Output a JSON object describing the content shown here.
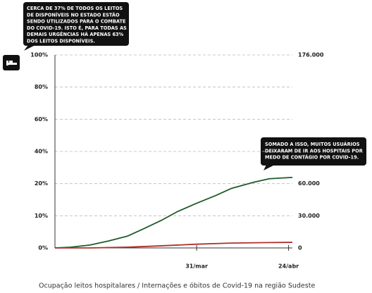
{
  "chart_data": {
    "type": "line",
    "caption": "Ocupação leitos hospitalares / Internações e óbitos de Covid-19 na região Sudeste",
    "annotations": [
      [
        "CERCA DE 37% DE TODOS OS LEITOS",
        "DE DISPONÍVEIS NO ESTADO ESTÃO",
        "SENDO UTILIZADOS PARA O COMBATE",
        "DO COVID-19. ISTO É, PARA TODAS AS",
        "DEMAIS URGÊNCIAS HÁ APENAS 63%",
        "DOS LEITOS DISPONÍVEIS."
      ],
      [
        "SOMADO A ISSO, MUITOS USUÁRIOS",
        "DEIXARAM DE IR AOS HOSPITAIS POR",
        "MEDO DE CONTÁGIO POR COVID-19."
      ]
    ],
    "xlim": [
      -37,
      25
    ],
    "xticks": [
      {
        "value": 0,
        "label": "31/mar"
      },
      {
        "value": 24,
        "label": "24/abr"
      }
    ],
    "ylim": [
      0,
      100
    ],
    "yticks": [
      {
        "value": 0,
        "label": "0%"
      },
      {
        "value": 10,
        "label": "10%"
      },
      {
        "value": 20,
        "label": "20%"
      },
      {
        "value": 40,
        "label": "40%"
      },
      {
        "value": 60,
        "label": "60%"
      },
      {
        "value": 80,
        "label": "80%"
      },
      {
        "value": 100,
        "label": "100%"
      }
    ],
    "y2lim": [
      0,
      176000
    ],
    "y2ticks": [
      0,
      {
        "value": 30000,
        "label": "30.000"
      },
      {
        "value": 60000,
        "label": "60.000"
      },
      {
        "value": 176000,
        "label": "176.000"
      }
    ],
    "grid": true,
    "series": [
      {
        "color": "#1f5a2a",
        "axis": "y2",
        "x": [
          -37,
          -33,
          -28,
          -23,
          -18,
          -14,
          -9,
          -5,
          0,
          5,
          9,
          15,
          19,
          25
        ],
        "values": [
          0,
          650,
          2600,
          6500,
          11100,
          17600,
          26100,
          33900,
          41700,
          48900,
          55400,
          61300,
          64400,
          65600
        ]
      },
      {
        "color": "#b0302a",
        "axis": "y2",
        "x": [
          -37,
          -28,
          -18,
          -9,
          0,
          9,
          19,
          25
        ],
        "values": [
          0,
          0,
          700,
          2000,
          3500,
          4500,
          5000,
          5200
        ]
      }
    ]
  }
}
